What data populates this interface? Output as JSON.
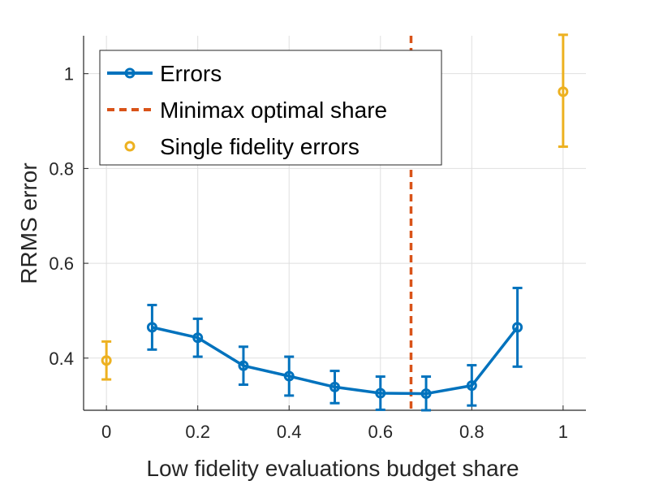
{
  "chart_data": {
    "type": "line",
    "xlabel": "Low fidelity evaluations budget share",
    "ylabel": "RRMS error",
    "xlim": [
      -0.05,
      1.05
    ],
    "ylim": [
      0.29,
      1.08
    ],
    "xticks": [
      0,
      0.2,
      0.4,
      0.6,
      0.8,
      1
    ],
    "xtick_labels": [
      "0",
      "0.2",
      "0.4",
      "0.6",
      "0.8",
      "1"
    ],
    "yticks": [
      0.4,
      0.6,
      0.8,
      1.0
    ],
    "ytick_labels": [
      "0.4",
      "0.6",
      "0.8",
      "1"
    ],
    "grid": true,
    "legend_position": "top-left",
    "series": [
      {
        "name": "Errors",
        "color": "#0072BD",
        "style": "line-marker-errorbar",
        "x": [
          0.1,
          0.2,
          0.3,
          0.4,
          0.5,
          0.6,
          0.7,
          0.8,
          0.9
        ],
        "y": [
          0.465,
          0.443,
          0.384,
          0.362,
          0.339,
          0.326,
          0.325,
          0.342,
          0.465
        ],
        "err_low": [
          0.418,
          0.403,
          0.344,
          0.321,
          0.305,
          0.291,
          0.29,
          0.3,
          0.382
        ],
        "err_high": [
          0.512,
          0.483,
          0.424,
          0.403,
          0.373,
          0.361,
          0.361,
          0.385,
          0.548
        ]
      },
      {
        "name": "Minimax optimal share",
        "color": "#D95319",
        "style": "dashed-vline",
        "x": 0.667
      },
      {
        "name": "Single fidelity errors",
        "color": "#EDB120",
        "style": "marker-errorbar",
        "x": [
          0,
          1
        ],
        "y": [
          0.395,
          0.962
        ],
        "err_low": [
          0.355,
          0.846
        ],
        "err_high": [
          0.435,
          1.082
        ]
      }
    ]
  }
}
